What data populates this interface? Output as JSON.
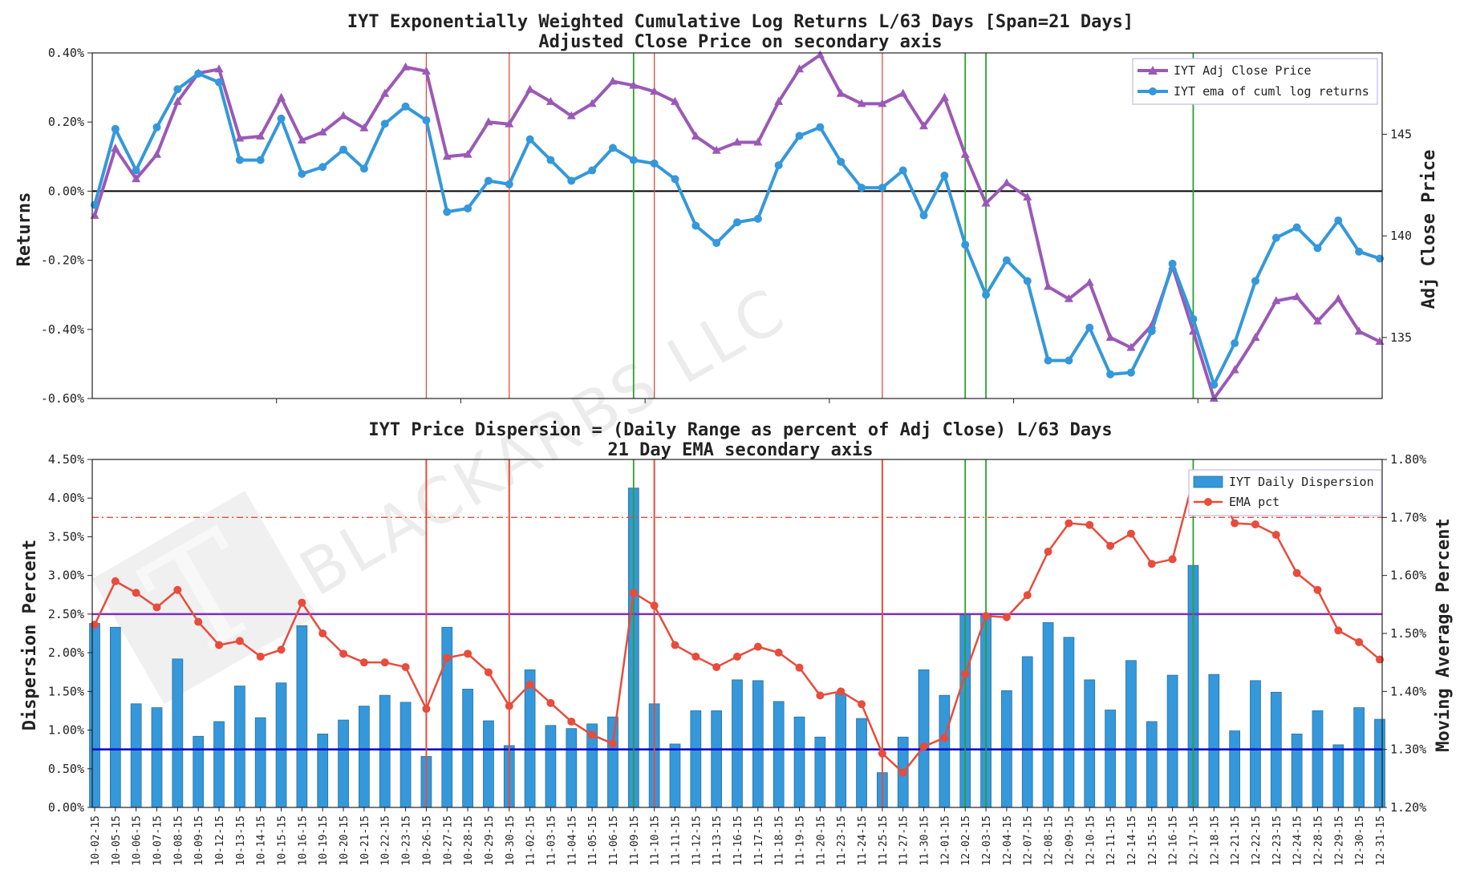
{
  "watermark": {
    "text": "BLACKARBS LLC",
    "logo_text": "T"
  },
  "chart_data": [
    {
      "type": "line",
      "title": "IYT Exponentially Weighted Cumulative Log Returns L/63 Days [Span=21 Days]",
      "subtitle": "Adjusted Close Price on secondary axis",
      "ylabel": "Returns",
      "y2label": "Adj Close Price",
      "ylim": [
        -0.6,
        0.4
      ],
      "yticks": [
        "-0.60%",
        "-0.40%",
        "-0.20%",
        "0.00%",
        "0.20%",
        "0.40%"
      ],
      "y2lim": [
        132.0,
        149.0
      ],
      "y2ticks": [
        "135",
        "140",
        "145"
      ],
      "zero_line": 0,
      "legend": [
        "IYT Adj Close Price",
        "IYT ema of cuml log returns"
      ],
      "legend_position": "top-right",
      "series": [
        {
          "name": "IYT ema of cuml log returns",
          "axis": "primary",
          "color": "#3498db",
          "values": [
            -0.04,
            0.18,
            0.06,
            0.185,
            0.295,
            0.34,
            0.315,
            0.09,
            0.09,
            0.21,
            0.05,
            0.07,
            0.12,
            0.065,
            0.195,
            0.245,
            0.205,
            -0.06,
            -0.05,
            0.03,
            0.02,
            0.15,
            0.09,
            0.03,
            0.06,
            0.125,
            0.09,
            0.08,
            0.035,
            -0.1,
            -0.15,
            -0.09,
            -0.08,
            0.075,
            0.16,
            0.185,
            0.085,
            0.01,
            0.01,
            0.06,
            -0.07,
            0.045,
            -0.155,
            -0.3,
            -0.2,
            -0.26,
            -0.49,
            -0.49,
            -0.395,
            -0.53,
            -0.525,
            -0.405,
            -0.21,
            -0.37,
            -0.56,
            -0.44,
            -0.26,
            -0.135,
            -0.105,
            -0.165,
            -0.085,
            -0.175,
            -0.195
          ]
        },
        {
          "name": "IYT Adj Close Price",
          "axis": "secondary",
          "color": "#9b59b6",
          "values": [
            141.0,
            144.3,
            142.8,
            144.0,
            146.6,
            148.0,
            148.2,
            144.8,
            144.9,
            146.8,
            144.7,
            145.1,
            145.9,
            145.3,
            147.0,
            148.3,
            148.1,
            143.9,
            144.0,
            145.6,
            145.5,
            147.2,
            146.6,
            145.9,
            146.5,
            147.6,
            147.4,
            147.1,
            146.6,
            144.9,
            144.2,
            144.6,
            144.6,
            146.6,
            148.2,
            148.9,
            147.0,
            146.5,
            146.5,
            147.0,
            145.4,
            146.8,
            144.0,
            141.6,
            142.6,
            141.9,
            137.5,
            136.9,
            137.7,
            135.0,
            134.5,
            135.6,
            138.5,
            135.3,
            132.0,
            133.4,
            135.0,
            136.8,
            137.0,
            135.8,
            136.9,
            135.3,
            134.8
          ]
        }
      ]
    },
    {
      "type": "bar",
      "title": "IYT Price Dispersion = (Daily Range as percent of Adj Close) L/63 Days",
      "subtitle": "21 Day EMA secondary axis",
      "ylabel": "Dispersion Percent",
      "y2label": "Moving Average Percent",
      "ylim": [
        0.0,
        4.5
      ],
      "yticks": [
        "0.00%",
        "0.50%",
        "1.00%",
        "1.50%",
        "2.00%",
        "2.50%",
        "3.00%",
        "3.50%",
        "4.00%",
        "4.50%"
      ],
      "y2lim": [
        1.2,
        1.8
      ],
      "y2ticks": [
        "1.20%",
        "1.30%",
        "1.40%",
        "1.50%",
        "1.60%",
        "1.70%",
        "1.80%"
      ],
      "legend": [
        "IYT Daily Dispersion",
        "EMA pct"
      ],
      "legend_position": "top-right",
      "categories": [
        "10-02-15",
        "10-05-15",
        "10-06-15",
        "10-07-15",
        "10-08-15",
        "10-09-15",
        "10-12-15",
        "10-13-15",
        "10-14-15",
        "10-15-15",
        "10-16-15",
        "10-19-15",
        "10-20-15",
        "10-21-15",
        "10-22-15",
        "10-23-15",
        "10-26-15",
        "10-27-15",
        "10-28-15",
        "10-29-15",
        "10-30-15",
        "11-02-15",
        "11-03-15",
        "11-04-15",
        "11-05-15",
        "11-06-15",
        "11-09-15",
        "11-10-15",
        "11-11-15",
        "11-12-15",
        "11-13-15",
        "11-16-15",
        "11-17-15",
        "11-18-15",
        "11-19-15",
        "11-20-15",
        "11-23-15",
        "11-24-15",
        "11-25-15",
        "11-27-15",
        "11-30-15",
        "12-01-15",
        "12-02-15",
        "12-03-15",
        "12-04-15",
        "12-07-15",
        "12-08-15",
        "12-09-15",
        "12-10-15",
        "12-11-15",
        "12-14-15",
        "12-15-15",
        "12-16-15",
        "12-17-15",
        "12-18-15",
        "12-21-15",
        "12-22-15",
        "12-23-15",
        "12-24-15",
        "12-28-15",
        "12-29-15",
        "12-30-15",
        "12-31-15"
      ],
      "series": [
        {
          "name": "IYT Daily Dispersion",
          "axis": "primary",
          "color": "#3498db",
          "values": [
            2.38,
            2.33,
            1.34,
            1.29,
            1.92,
            0.92,
            1.11,
            1.57,
            1.16,
            1.61,
            2.35,
            0.95,
            1.13,
            1.31,
            1.45,
            1.36,
            0.66,
            2.33,
            1.53,
            1.12,
            0.8,
            1.78,
            1.06,
            1.02,
            1.08,
            1.17,
            4.13,
            1.34,
            0.82,
            1.25,
            1.25,
            1.65,
            1.64,
            1.37,
            1.17,
            0.91,
            1.47,
            1.15,
            0.45,
            0.91,
            1.78,
            1.45,
            2.5,
            2.51,
            1.51,
            1.95,
            2.39,
            2.2,
            1.65,
            1.26,
            1.9,
            1.11,
            1.71,
            3.13,
            1.72,
            0.99,
            1.64,
            1.49,
            0.95,
            1.25,
            0.81,
            1.29,
            1.14
          ]
        },
        {
          "name": "EMA pct",
          "axis": "secondary",
          "color": "#e74c3c",
          "values": [
            1.515,
            1.59,
            1.57,
            1.545,
            1.575,
            1.52,
            1.48,
            1.487,
            1.46,
            1.472,
            1.553,
            1.5,
            1.465,
            1.45,
            1.45,
            1.442,
            1.37,
            1.458,
            1.465,
            1.433,
            1.375,
            1.412,
            1.38,
            1.348,
            1.325,
            1.31,
            1.57,
            1.548,
            1.48,
            1.46,
            1.442,
            1.46,
            1.477,
            1.467,
            1.441,
            1.393,
            1.4,
            1.378,
            1.293,
            1.26,
            1.305,
            1.32,
            1.43,
            1.53,
            1.528,
            1.566,
            1.641,
            1.69,
            1.687,
            1.651,
            1.672,
            1.62,
            1.628,
            1.765,
            1.763,
            1.69,
            1.688,
            1.67,
            1.604,
            1.575,
            1.505,
            1.485,
            1.455
          ]
        }
      ],
      "hlines": [
        {
          "axis": "secondary",
          "value": 1.3,
          "color": "#0000cc",
          "style": "solid"
        },
        {
          "axis": "primary",
          "value": 2.5,
          "color": "#7b2fbe",
          "style": "solid"
        },
        {
          "axis": "secondary",
          "value": 1.7,
          "color": "#e74c3c",
          "style": "dash-dot"
        }
      ]
    }
  ],
  "markers": {
    "red_vlines": [
      "10-26-15",
      "10-30-15",
      "11-10-15",
      "11-25-15"
    ],
    "green_vlines": [
      "11-09-15",
      "12-02-15",
      "12-03-15",
      "12-17-15"
    ]
  }
}
